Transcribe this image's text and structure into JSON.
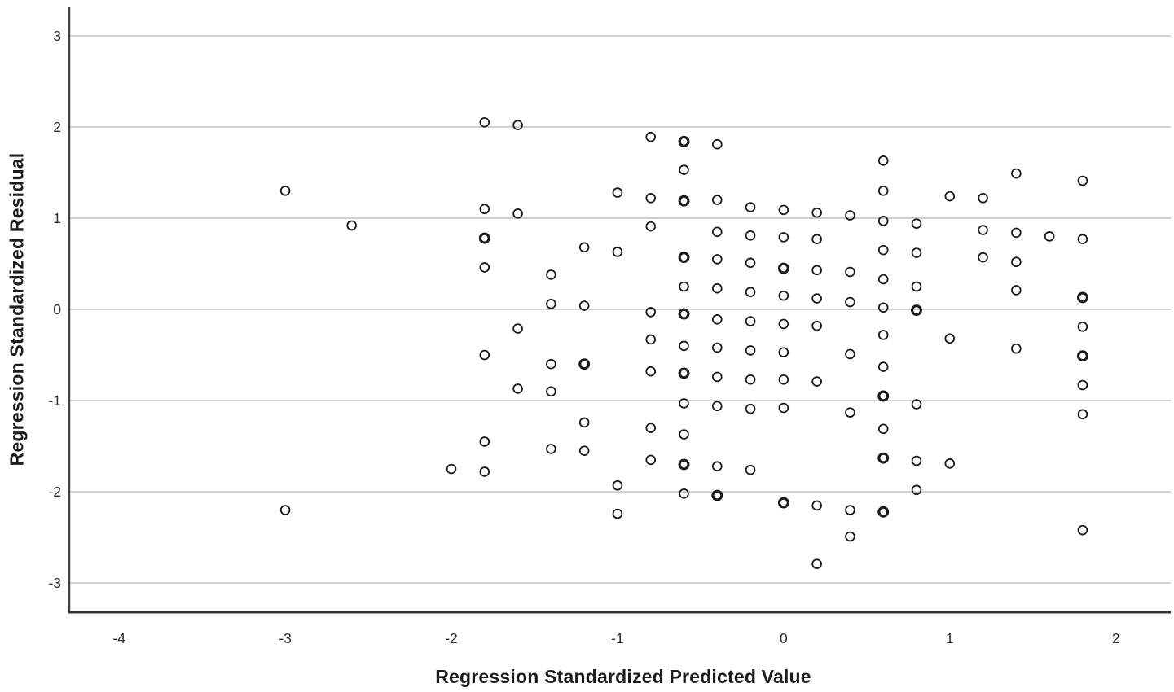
{
  "chart_data": {
    "type": "scatter",
    "title": "",
    "xlabel": "Regression Standardized Predicted Value",
    "ylabel": "Regression Standardized Residual",
    "xlim": [
      -4.3,
      2.33
    ],
    "ylim": [
      -3.32,
      3.32
    ],
    "x_ticks": [
      -4,
      -3,
      -2,
      -1,
      0,
      1,
      2
    ],
    "y_ticks": [
      -3,
      -2,
      -1,
      0,
      1,
      2,
      3
    ],
    "grid": "horizontal-only",
    "legend": "none",
    "marker": "open-circle",
    "colors": {
      "background": "#ffffff",
      "gridline": "#cbcbcb",
      "axis_line": "#404040",
      "tick_text": "#2b2b2b",
      "marker_stroke": "#1a1a1a"
    },
    "points": [
      [
        -3,
        1.3
      ],
      [
        -3,
        -2.2
      ],
      [
        -2.6,
        0.92
      ],
      [
        -2,
        -1.75
      ],
      [
        -1.8,
        2.05
      ],
      [
        -1.8,
        1.1
      ],
      [
        -1.8,
        0.46
      ],
      [
        -1.8,
        -0.5
      ],
      [
        -1.8,
        -1.45
      ],
      [
        -1.8,
        -1.78
      ],
      [
        -1.6,
        2.02
      ],
      [
        -1.6,
        1.05
      ],
      [
        -1.6,
        -0.21
      ],
      [
        -1.6,
        -0.87
      ],
      [
        -1.4,
        0.38
      ],
      [
        -1.4,
        0.06
      ],
      [
        -1.4,
        -0.6
      ],
      [
        -1.4,
        -0.9
      ],
      [
        -1.4,
        -1.53
      ],
      [
        -1.2,
        0.68
      ],
      [
        -1.2,
        0.04
      ],
      [
        -1.2,
        -1.24
      ],
      [
        -1.2,
        -1.55
      ],
      [
        -1,
        1.28
      ],
      [
        -1,
        0.63
      ],
      [
        -1,
        -1.93
      ],
      [
        -1,
        -2.24
      ],
      [
        -0.8,
        1.89
      ],
      [
        -0.8,
        1.22
      ],
      [
        -0.8,
        0.91
      ],
      [
        -0.8,
        -0.03
      ],
      [
        -0.8,
        -0.33
      ],
      [
        -0.8,
        -0.68
      ],
      [
        -0.8,
        -1.3
      ],
      [
        -0.8,
        -1.65
      ],
      [
        -0.6,
        1.53
      ],
      [
        -0.6,
        0.25
      ],
      [
        -0.6,
        -0.4
      ],
      [
        -0.6,
        -1.03
      ],
      [
        -0.6,
        -1.37
      ],
      [
        -0.6,
        -2.02
      ],
      [
        -0.4,
        1.81
      ],
      [
        -0.4,
        1.2
      ],
      [
        -0.4,
        0.85
      ],
      [
        -0.4,
        0.55
      ],
      [
        -0.4,
        0.23
      ],
      [
        -0.4,
        -0.11
      ],
      [
        -0.4,
        -0.42
      ],
      [
        -0.4,
        -0.74
      ],
      [
        -0.4,
        -1.06
      ],
      [
        -0.4,
        -1.72
      ],
      [
        -0.2,
        1.12
      ],
      [
        -0.2,
        0.81
      ],
      [
        -0.2,
        0.51
      ],
      [
        -0.2,
        0.19
      ],
      [
        -0.2,
        -0.13
      ],
      [
        -0.2,
        -0.45
      ],
      [
        -0.2,
        -0.77
      ],
      [
        -0.2,
        -1.09
      ],
      [
        -0.2,
        -1.76
      ],
      [
        0,
        1.09
      ],
      [
        0,
        0.79
      ],
      [
        0,
        0.15
      ],
      [
        0,
        -0.16
      ],
      [
        0,
        -0.47
      ],
      [
        0,
        -0.77
      ],
      [
        0,
        -1.08
      ],
      [
        0.2,
        1.06
      ],
      [
        0.2,
        0.77
      ],
      [
        0.2,
        0.43
      ],
      [
        0.2,
        0.12
      ],
      [
        0.2,
        -0.18
      ],
      [
        0.2,
        -0.79
      ],
      [
        0.2,
        -2.15
      ],
      [
        0.2,
        -2.79
      ],
      [
        0.4,
        1.03
      ],
      [
        0.4,
        0.41
      ],
      [
        0.4,
        0.08
      ],
      [
        0.4,
        -0.49
      ],
      [
        0.4,
        -1.13
      ],
      [
        0.4,
        -2.2
      ],
      [
        0.4,
        -2.49
      ],
      [
        0.6,
        1.63
      ],
      [
        0.6,
        1.3
      ],
      [
        0.6,
        0.97
      ],
      [
        0.6,
        0.65
      ],
      [
        0.6,
        0.33
      ],
      [
        0.6,
        0.02
      ],
      [
        0.6,
        -0.28
      ],
      [
        0.6,
        -0.63
      ],
      [
        0.6,
        -1.31
      ],
      [
        0.8,
        0.94
      ],
      [
        0.8,
        0.62
      ],
      [
        0.8,
        0.25
      ],
      [
        0.8,
        -1.04
      ],
      [
        0.8,
        -1.66
      ],
      [
        0.8,
        -1.98
      ],
      [
        1,
        1.24
      ],
      [
        1,
        -0.32
      ],
      [
        1,
        -1.69
      ],
      [
        1.2,
        1.22
      ],
      [
        1.2,
        0.87
      ],
      [
        1.2,
        0.57
      ],
      [
        1.4,
        1.49
      ],
      [
        1.4,
        0.84
      ],
      [
        1.4,
        0.52
      ],
      [
        1.4,
        0.21
      ],
      [
        1.4,
        -0.43
      ],
      [
        1.6,
        0.8
      ],
      [
        1.8,
        1.41
      ],
      [
        1.8,
        0.77
      ],
      [
        1.8,
        -0.19
      ],
      [
        1.8,
        -0.83
      ],
      [
        1.8,
        -1.15
      ],
      [
        1.8,
        -2.42
      ]
    ],
    "bold_points": [
      [
        -1.8,
        0.78
      ],
      [
        -1.2,
        -0.6
      ],
      [
        -0.6,
        1.84
      ],
      [
        -0.6,
        1.19
      ],
      [
        -0.6,
        0.57
      ],
      [
        -0.6,
        -0.05
      ],
      [
        -0.6,
        -0.7
      ],
      [
        -0.6,
        -1.7
      ],
      [
        -0.4,
        -2.04
      ],
      [
        0,
        0.45
      ],
      [
        0,
        -2.12
      ],
      [
        0.6,
        -0.95
      ],
      [
        0.6,
        -1.63
      ],
      [
        0.6,
        -2.22
      ],
      [
        0.8,
        -0.01
      ],
      [
        1.8,
        0.13
      ],
      [
        1.8,
        -0.51
      ]
    ]
  }
}
